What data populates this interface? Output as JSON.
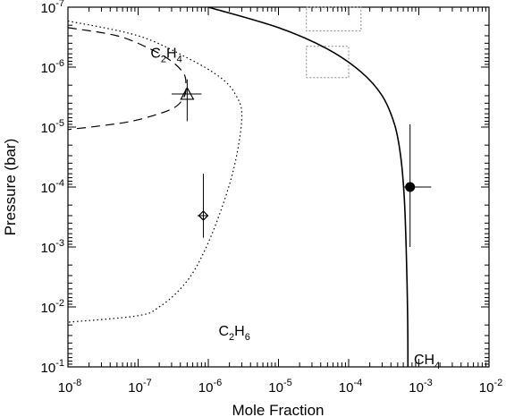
{
  "chart_data": {
    "type": "line",
    "xlabel": "Mole Fraction",
    "ylabel": "Pressure (bar)",
    "xscale": "log",
    "yscale": "log",
    "xlim": [
      1e-08,
      0.01
    ],
    "ylim": [
      0.1,
      1e-07
    ],
    "y_inverted": true,
    "x_ticks": [
      {
        "value": 1e-08,
        "base": "10",
        "exp": "-8"
      },
      {
        "value": 1e-07,
        "base": "10",
        "exp": "-7"
      },
      {
        "value": 1e-06,
        "base": "10",
        "exp": "-6"
      },
      {
        "value": 1e-05,
        "base": "10",
        "exp": "-5"
      },
      {
        "value": 0.0001,
        "base": "10",
        "exp": "-4"
      },
      {
        "value": 0.001,
        "base": "10",
        "exp": "-3"
      },
      {
        "value": 0.01,
        "base": "10",
        "exp": "-2"
      }
    ],
    "y_ticks": [
      {
        "value": 1e-07,
        "base": "10",
        "exp": "-7"
      },
      {
        "value": 1e-06,
        "base": "10",
        "exp": "-6"
      },
      {
        "value": 1e-05,
        "base": "10",
        "exp": "-5"
      },
      {
        "value": 0.0001,
        "base": "10",
        "exp": "-4"
      },
      {
        "value": 0.001,
        "base": "10",
        "exp": "-3"
      },
      {
        "value": 0.01,
        "base": "10",
        "exp": "-2"
      },
      {
        "value": 0.1,
        "base": "10",
        "exp": "-1"
      }
    ],
    "series": [
      {
        "name": "CH4",
        "style": "solid",
        "points": [
          [
            1e-06,
            1e-07
          ],
          [
            1e-05,
            2.2e-07
          ],
          [
            5e-05,
            5e-07
          ],
          [
            0.00015,
            1.2e-06
          ],
          [
            0.0003,
            3e-06
          ],
          [
            0.00045,
            9e-06
          ],
          [
            0.00055,
            3e-05
          ],
          [
            0.00062,
            0.00015
          ],
          [
            0.00066,
            0.001
          ],
          [
            0.00069,
            0.01
          ],
          [
            0.0007,
            0.1
          ]
        ]
      },
      {
        "name": "C2H4",
        "style": "dashed",
        "points": [
          [
            1e-08,
            2.2e-07
          ],
          [
            5e-08,
            3e-07
          ],
          [
            1.5e-07,
            5e-07
          ],
          [
            3e-07,
            8e-07
          ],
          [
            4.5e-07,
            1.3e-06
          ],
          [
            4.8e-07,
            2e-06
          ],
          [
            4.6e-07,
            3e-06
          ],
          [
            3.5e-07,
            4.5e-06
          ],
          [
            2e-07,
            6e-06
          ],
          [
            8e-08,
            8e-06
          ],
          [
            3e-08,
            9.5e-06
          ],
          [
            1e-08,
            1.1e-05
          ]
        ]
      },
      {
        "name": "C2H6",
        "style": "dotted",
        "points": [
          [
            1e-08,
            1.7e-07
          ],
          [
            1e-07,
            3e-07
          ],
          [
            5e-07,
            7e-07
          ],
          [
            1.5e-06,
            1.5e-06
          ],
          [
            2.5e-06,
            3e-06
          ],
          [
            3e-06,
            7e-06
          ],
          [
            2.3e-06,
            5e-05
          ],
          [
            1.3e-06,
            0.0004
          ],
          [
            7e-07,
            0.002
          ],
          [
            4e-07,
            0.005
          ],
          [
            2e-07,
            0.01
          ],
          [
            1e-07,
            0.014
          ],
          [
            1e-08,
            0.018
          ]
        ]
      }
    ],
    "observations": [
      {
        "species": "C2H4",
        "marker": "open-triangle",
        "x": 5e-07,
        "y": 2.8e-06,
        "xerr": [
          3e-07,
          8e-07
        ],
        "yerr": [
          1.6e-06,
          8e-06
        ]
      },
      {
        "species": "C2H6",
        "marker": "open-diamond",
        "x": 8.5e-07,
        "y": 0.0003,
        "xerr": [
          7e-07,
          1e-06
        ],
        "yerr": [
          6e-05,
          0.0007
        ]
      },
      {
        "species": "CH4",
        "marker": "filled-circle",
        "x": 0.00075,
        "y": 0.0001,
        "xerr": [
          0.0006,
          0.0015
        ],
        "yerr": [
          9e-06,
          0.001
        ]
      }
    ],
    "boxes": [
      {
        "style": "dotted",
        "x": [
          2.5e-05,
          0.00015
        ],
        "y": [
          1e-07,
          2.5e-07
        ]
      },
      {
        "style": "dotted",
        "x": [
          2.5e-05,
          0.0001
        ],
        "y": [
          4.5e-07,
          1.5e-06
        ]
      }
    ],
    "labels": [
      {
        "species": "C2H4",
        "main1": "C",
        "sub1": "2",
        "main2": "H",
        "sub2": "4",
        "x": 1.5e-07,
        "y": 7e-07
      },
      {
        "species": "C2H6",
        "main1": "C",
        "sub1": "2",
        "main2": "H",
        "sub2": "6",
        "x": 1.4e-06,
        "y": 0.03
      },
      {
        "species": "CH4",
        "main1": "CH",
        "sub1": "4",
        "main2": "",
        "sub2": "",
        "x": 0.00085,
        "y": 0.09
      }
    ]
  }
}
